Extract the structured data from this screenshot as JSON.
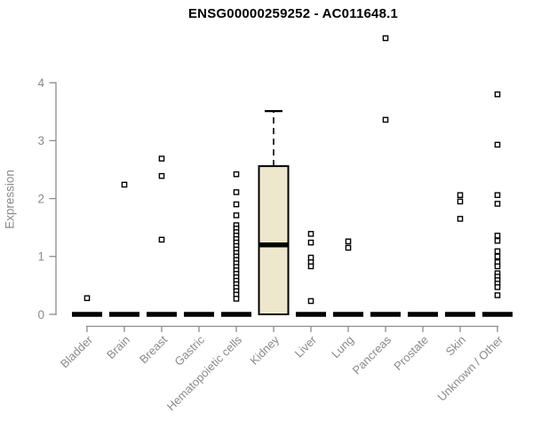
{
  "chart_data": {
    "type": "boxplot",
    "title": "ENSG00000259252 - AC011648.1",
    "ylabel": "Expression",
    "xlabel": "",
    "ylim": [
      0,
      4.9
    ],
    "yticks": [
      0,
      1,
      2,
      3,
      4
    ],
    "grid": false,
    "legend": "none",
    "colors": {
      "box_fill": "#ede8cd",
      "box_stroke": "#000000",
      "median": "#000000",
      "outlier": "#000000",
      "axis": "#8c8c8c",
      "axis_text": "#8a8a8a",
      "title_text": "#000000"
    },
    "categories": [
      "Bladder",
      "Brain",
      "Breast",
      "Gastric",
      "Hematopoietic cells",
      "Kidney",
      "Liver",
      "Lung",
      "Pancreas",
      "Prostate",
      "Skin",
      "Unknown / Other"
    ],
    "groups": [
      {
        "category": "Bladder",
        "q1": 0,
        "median": 0,
        "q3": 0,
        "whisker_low": 0,
        "whisker_high": 0,
        "outliers": [
          0.28
        ]
      },
      {
        "category": "Brain",
        "q1": 0,
        "median": 0,
        "q3": 0,
        "whisker_low": 0,
        "whisker_high": 0,
        "outliers": [
          2.24
        ]
      },
      {
        "category": "Breast",
        "q1": 0,
        "median": 0,
        "q3": 0,
        "whisker_low": 0,
        "whisker_high": 0,
        "outliers": [
          2.69,
          2.39,
          1.29
        ]
      },
      {
        "category": "Gastric",
        "q1": 0,
        "median": 0,
        "q3": 0,
        "whisker_low": 0,
        "whisker_high": 0,
        "outliers": []
      },
      {
        "category": "Hematopoietic cells",
        "q1": 0,
        "median": 0,
        "q3": 0,
        "whisker_low": 0,
        "whisker_high": 0,
        "outliers": [
          2.42,
          2.11,
          1.9,
          1.71,
          1.54,
          1.48,
          1.42,
          1.36,
          1.3,
          1.24,
          1.18,
          1.12,
          1.06,
          1.0,
          0.94,
          0.88,
          0.82,
          0.76,
          0.7,
          0.64,
          0.58,
          0.52,
          0.46,
          0.4,
          0.34,
          0.27
        ]
      },
      {
        "category": "Kidney",
        "q1": 0,
        "median": 1.2,
        "q3": 2.56,
        "whisker_low": 0,
        "whisker_high": 3.51,
        "outliers": []
      },
      {
        "category": "Liver",
        "q1": 0,
        "median": 0,
        "q3": 0,
        "whisker_low": 0,
        "whisker_high": 0,
        "outliers": [
          1.39,
          1.24,
          0.98,
          0.9,
          0.83,
          0.23
        ]
      },
      {
        "category": "Lung",
        "q1": 0,
        "median": 0,
        "q3": 0,
        "whisker_low": 0,
        "whisker_high": 0,
        "outliers": [
          1.26,
          1.15
        ]
      },
      {
        "category": "Pancreas",
        "q1": 0,
        "median": 0,
        "q3": 0,
        "whisker_low": 0,
        "whisker_high": 0,
        "outliers": [
          4.77,
          3.36
        ]
      },
      {
        "category": "Prostate",
        "q1": 0,
        "median": 0,
        "q3": 0,
        "whisker_low": 0,
        "whisker_high": 0,
        "outliers": []
      },
      {
        "category": "Skin",
        "q1": 0,
        "median": 0,
        "q3": 0,
        "whisker_low": 0,
        "whisker_high": 0,
        "outliers": [
          2.06,
          1.95,
          1.65
        ]
      },
      {
        "category": "Unknown / Other",
        "q1": 0,
        "median": 0,
        "q3": 0,
        "whisker_low": 0,
        "whisker_high": 0,
        "outliers": [
          3.8,
          2.93,
          2.06,
          1.91,
          1.36,
          1.27,
          1.09,
          1.0,
          0.9,
          0.83,
          0.71,
          0.65,
          0.59,
          0.53,
          0.47,
          0.33
        ]
      }
    ]
  }
}
